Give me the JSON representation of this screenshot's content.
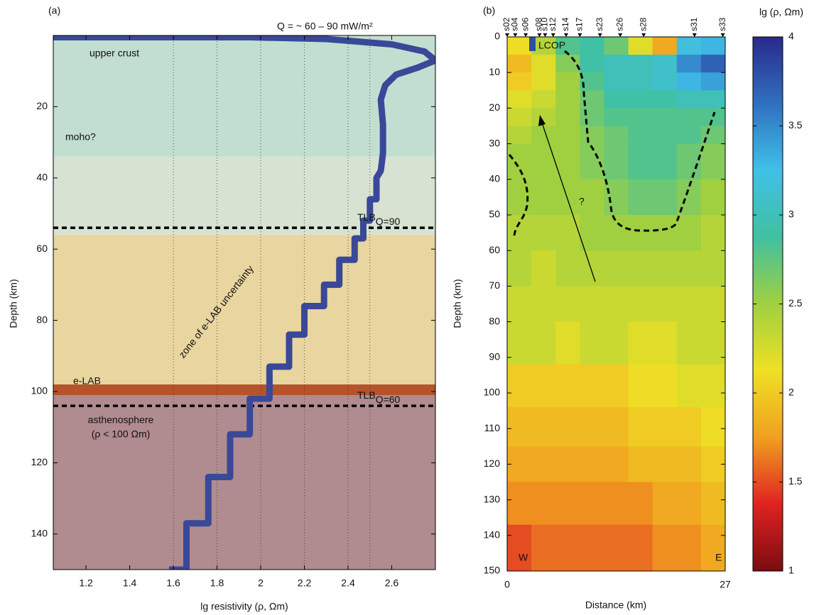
{
  "chart_data": [
    {
      "type": "line",
      "label": "(a)",
      "title": "Q = ~ 60 – 90 mW/m²",
      "x_label": "lg resistivity (ρ, Ωm)",
      "y_label": "Depth (km)",
      "xlim": [
        1.05,
        2.8
      ],
      "ylim": [
        0,
        150
      ],
      "y_inverted": true,
      "xticks": [
        1.2,
        1.4,
        1.6,
        1.8,
        2,
        2.2,
        2.4,
        2.6
      ],
      "yticks": [
        20,
        40,
        60,
        80,
        100,
        120,
        140
      ],
      "x_grid": [
        1.6,
        1.8,
        2,
        2.2,
        2.4,
        2.5
      ],
      "x": [
        1.05,
        1.95,
        2.3,
        2.6,
        2.75,
        2.8,
        2.72,
        2.62,
        2.57,
        2.55,
        2.56,
        2.56,
        2.55,
        2.53,
        2.53,
        2.5,
        2.5,
        2.47,
        2.47,
        2.43,
        2.43,
        2.36,
        2.36,
        2.29,
        2.29,
        2.2,
        2.2,
        2.13,
        2.13,
        2.04,
        2.04,
        1.95,
        1.95,
        1.86,
        1.86,
        1.76,
        1.76,
        1.66,
        1.66,
        1.58
      ],
      "series": [
        {
          "color": "#3a4898",
          "values": [
            0.5,
            0.5,
            1,
            2.5,
            4.5,
            7,
            9,
            11,
            14,
            18,
            25,
            33,
            38,
            40,
            46,
            46,
            52,
            52,
            57,
            57,
            63,
            63,
            70,
            70,
            76,
            76,
            84,
            84,
            93,
            93,
            102,
            102,
            112,
            112,
            124,
            124,
            137,
            137,
            150,
            150
          ]
        }
      ],
      "layers": [
        {
          "label": "upper crust",
          "top": 0,
          "bottom": 34,
          "color": "#c1ded1"
        },
        {
          "label": "moho?",
          "top": 34,
          "bottom": 56,
          "color": "#d7e2d2"
        },
        {
          "label": "zone of e-LAB uncertainty",
          "top": 56,
          "bottom": 98,
          "color": "#e8d59f"
        },
        {
          "label": "e-LAB",
          "top": 98,
          "bottom": 101,
          "color": "#b5532b"
        },
        {
          "label": "asthenosphere",
          "sublabel": "(ρ < 100 Ωm)",
          "top": 101,
          "bottom": 150,
          "color": "#b08b8f"
        }
      ],
      "boundaries": [
        {
          "value": 54,
          "label": "TLB",
          "subscript": "Q=90"
        },
        {
          "value": 104,
          "label": "TLB",
          "subscript": "Q=60"
        }
      ]
    },
    {
      "type": "heatmap",
      "label": "(b)",
      "x_label": "Distance (km)",
      "y_label": "Depth (km)",
      "xlim": [
        0,
        27
      ],
      "ylim": [
        0,
        150
      ],
      "y_inverted": true,
      "xticks": [
        0,
        27
      ],
      "yticks": [
        0,
        10,
        20,
        30,
        40,
        50,
        60,
        70,
        80,
        90,
        100,
        110,
        120,
        130,
        140,
        150
      ],
      "x_edges": [
        0,
        3,
        6,
        9,
        12,
        15,
        18,
        21,
        24,
        27
      ],
      "y_edges": [
        0,
        5,
        10,
        15,
        20,
        25,
        30,
        40,
        50,
        60,
        70,
        80,
        92,
        104,
        115,
        125,
        137,
        150
      ],
      "z": [
        [
          2.1,
          2.4,
          2.8,
          2.9,
          2.7,
          2.2,
          1.8,
          3.2,
          3.3
        ],
        [
          1.9,
          2.2,
          2.6,
          2.9,
          3.0,
          3.0,
          3.1,
          3.5,
          3.7
        ],
        [
          2.0,
          2.2,
          2.5,
          2.8,
          3.0,
          3.0,
          3.1,
          3.3,
          3.4
        ],
        [
          2.2,
          2.3,
          2.5,
          2.7,
          2.9,
          2.9,
          2.9,
          3.0,
          3.0
        ],
        [
          2.3,
          2.4,
          2.5,
          2.7,
          2.8,
          2.8,
          2.8,
          2.8,
          2.8
        ],
        [
          2.4,
          2.5,
          2.5,
          2.6,
          2.7,
          2.8,
          2.8,
          2.8,
          2.7
        ],
        [
          2.5,
          2.5,
          2.5,
          2.6,
          2.7,
          2.8,
          2.8,
          2.7,
          2.6
        ],
        [
          2.5,
          2.5,
          2.5,
          2.5,
          2.6,
          2.7,
          2.7,
          2.6,
          2.5
        ],
        [
          2.4,
          2.4,
          2.4,
          2.5,
          2.5,
          2.5,
          2.5,
          2.5,
          2.4
        ],
        [
          2.4,
          2.3,
          2.4,
          2.4,
          2.4,
          2.4,
          2.4,
          2.4,
          2.4
        ],
        [
          2.3,
          2.3,
          2.3,
          2.3,
          2.3,
          2.3,
          2.3,
          2.3,
          2.3
        ],
        [
          2.3,
          2.3,
          2.2,
          2.3,
          2.3,
          2.2,
          2.2,
          2.3,
          2.3
        ],
        [
          2.0,
          2.0,
          2.0,
          2.0,
          2.0,
          2.1,
          2.1,
          2.2,
          2.2
        ],
        [
          1.9,
          1.9,
          1.9,
          1.9,
          1.9,
          2.0,
          2.0,
          2.0,
          2.1
        ],
        [
          1.8,
          1.8,
          1.8,
          1.8,
          1.8,
          1.9,
          1.9,
          1.9,
          2.0
        ],
        [
          1.7,
          1.7,
          1.7,
          1.7,
          1.7,
          1.7,
          1.8,
          1.8,
          1.9
        ],
        [
          1.5,
          1.6,
          1.6,
          1.6,
          1.6,
          1.6,
          1.7,
          1.7,
          1.8
        ]
      ],
      "colorbar": {
        "label": "lg (ρ, Ωm)",
        "lim": [
          1,
          4
        ],
        "ticks": [
          1,
          1.5,
          2,
          2.5,
          3,
          3.5,
          4
        ],
        "colors": [
          "#7a0c10",
          "#e02222",
          "#f0a020",
          "#efe024",
          "#a0d040",
          "#40c0a0",
          "#40c0e8",
          "#3070c0",
          "#2a2a8a"
        ]
      },
      "stations": {
        "names": [
          "s02",
          "s04",
          "s06",
          "s08",
          "s10",
          "s12",
          "s14",
          "s17",
          "s23",
          "s26",
          "s28",
          "s31",
          "s33"
        ],
        "x": [
          0,
          1,
          2.3,
          4,
          4.7,
          5.7,
          7.3,
          9,
          11.5,
          14,
          16.9,
          23.2,
          26.7
        ]
      },
      "annotations": [
        "LCOP",
        "?",
        "W",
        "E"
      ]
    }
  ]
}
